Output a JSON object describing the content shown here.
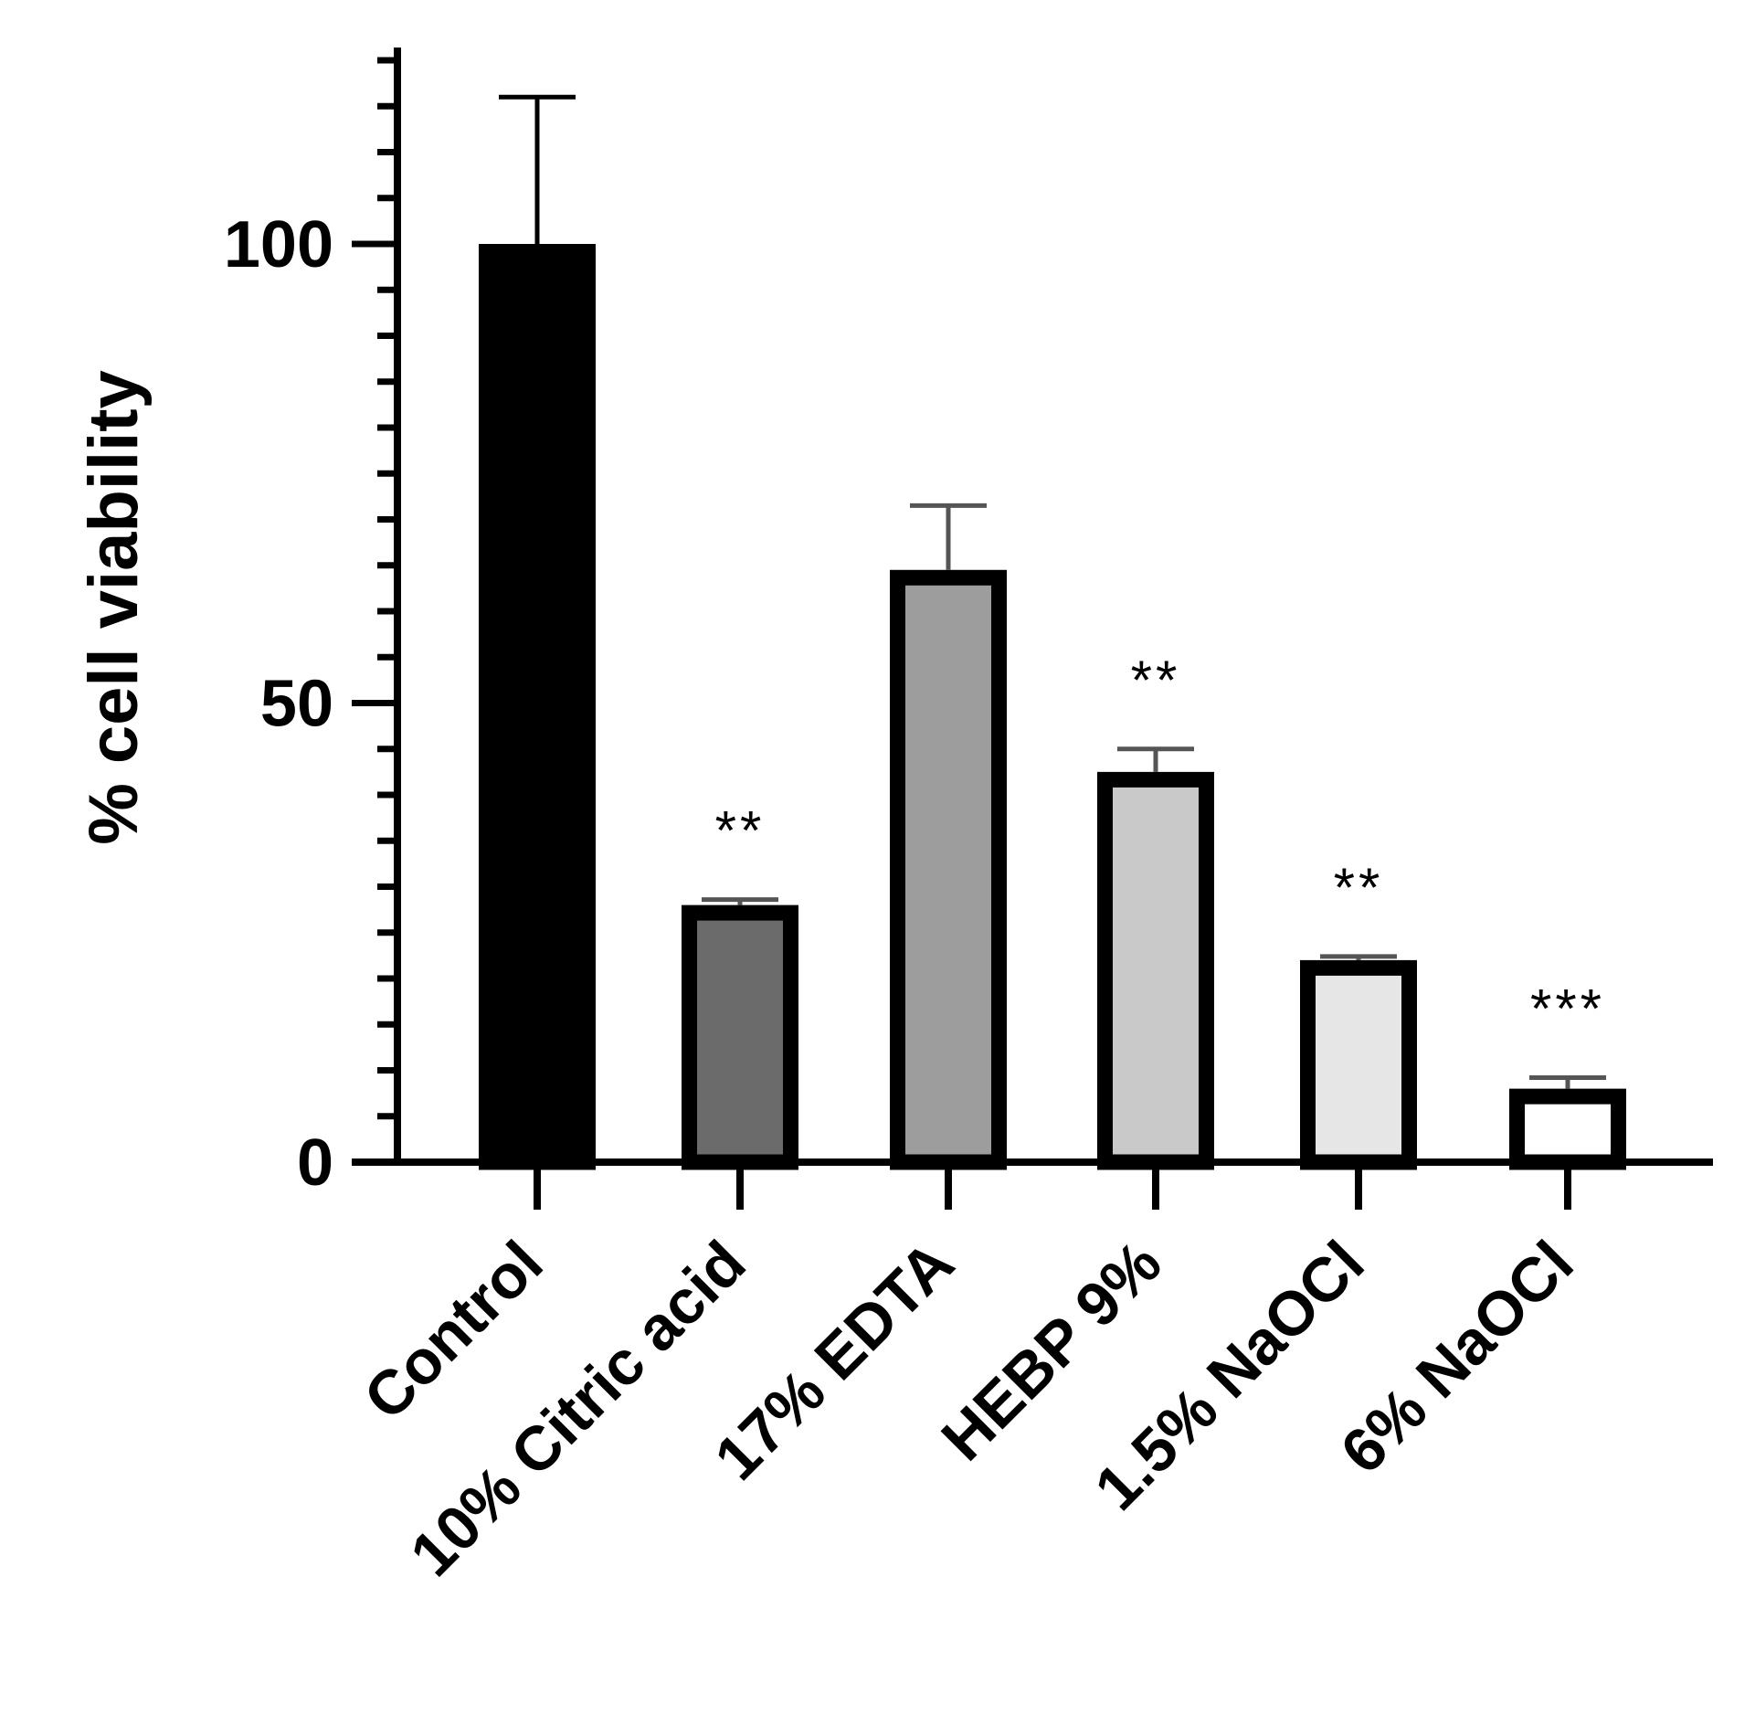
{
  "chart_data": {
    "type": "bar",
    "title": "",
    "xlabel": "",
    "ylabel": "% cell viability",
    "ylim": [
      0,
      120
    ],
    "yticks": [
      0,
      50,
      100
    ],
    "grid": false,
    "categories": [
      "Control",
      "10% Citric acid",
      "17% EDTA",
      "HEBP 9%",
      "1.5% NaOCl",
      "6% NaOCl"
    ],
    "values": [
      100,
      28,
      64.5,
      42.5,
      22,
      8
    ],
    "errors": [
      16,
      0.6,
      7,
      2.5,
      0.4,
      1.2
    ],
    "fills": [
      "#000000",
      "#6b6b6b",
      "#9d9d9d",
      "#c9c9c9",
      "#e6e6e6",
      "#ffffff"
    ],
    "significance": [
      "",
      "**",
      "",
      "**",
      "**",
      "***"
    ]
  }
}
